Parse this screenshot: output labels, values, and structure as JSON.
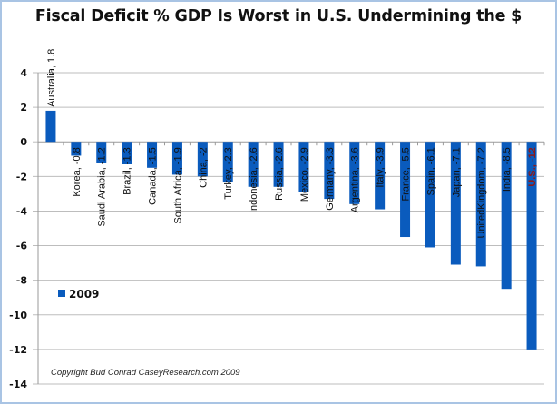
{
  "chart_data": {
    "type": "bar",
    "title": "Fiscal Deficit % GDP Is Worst in U.S. Undermining the $",
    "xlabel": "",
    "ylabel": "",
    "ylim": [
      -14,
      4
    ],
    "yticks": [
      4,
      2,
      0,
      -2,
      -4,
      -6,
      -8,
      -10,
      -12,
      -14
    ],
    "ytick_labels": [
      "4",
      "2",
      "0",
      "-2",
      "-4",
      "-6",
      "-8",
      "-10",
      "-12",
      "-14"
    ],
    "grid": true,
    "legend_position": "lower-left",
    "categories": [
      "Australia",
      "Korea",
      "Saudi Arabia",
      "Brazil",
      "Canada",
      "South Africa",
      "China",
      "Turkey",
      "Indonesia",
      "Russia",
      "Mexico",
      "Germany",
      "Argentina",
      "Italy",
      "France",
      "Spain",
      "Japan",
      "UnitedKingdom",
      "India",
      "U.S."
    ],
    "series": [
      {
        "name": "2009",
        "color": "#0a5bbd",
        "values": [
          1.8,
          -0.8,
          -1.2,
          -1.3,
          -1.5,
          -1.9,
          -2,
          -2.3,
          -2.6,
          -2.6,
          -2.9,
          -3.3,
          -3.6,
          -3.9,
          -5.5,
          -6.1,
          -7.1,
          -7.2,
          -8.5,
          -12
        ]
      }
    ],
    "data_labels": [
      "Australia, 1.8",
      "Korea, -0.8",
      "Saudi Arabia, -1.2",
      "Brazil, -1.3",
      "Canada, -1.5",
      "South Africa, -1.9",
      "China, -2",
      "Turkey, -2.3",
      "Indonesia, -2.6",
      "Russia, -2.6",
      "Mexico, -2.9",
      "Germany, -3.3",
      "Argentina, -3.6",
      "Italy, -3.9",
      "France, -5.5",
      "Spain, -6.1",
      "Japan, -7.1",
      "UnitedKingdom, -7.2",
      "India, -8.5",
      "U.S., -12"
    ],
    "highlight_category": "U.S.",
    "highlight_color": "#8b1a1a",
    "annotation": "Copyright Bud Conrad CaseyResearch.com 2009"
  },
  "colors": {
    "frame_border": "#a9c4e4",
    "grid": "#bdbdbd",
    "bar": "#0a5bbd"
  }
}
